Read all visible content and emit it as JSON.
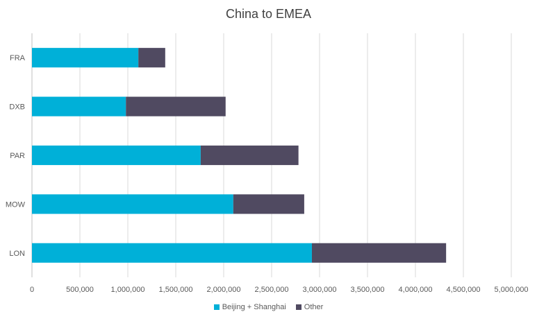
{
  "chart_data": {
    "type": "bar",
    "orientation": "horizontal",
    "stacked": true,
    "title": "China to EMEA",
    "xlabel": "",
    "ylabel": "",
    "categories": [
      "FRA",
      "DXB",
      "PAR",
      "MOW",
      "LON"
    ],
    "series": [
      {
        "name": "Beijing + Shanghai",
        "color": "#00B0D8",
        "values": [
          1110000,
          980000,
          1760000,
          2100000,
          2920000
        ]
      },
      {
        "name": "Other",
        "color": "#504A61",
        "values": [
          280000,
          1040000,
          1020000,
          740000,
          1400000
        ]
      }
    ],
    "xlim": [
      0,
      5000000
    ],
    "xticks": [
      "0",
      "500,000",
      "1,000,000",
      "1,500,000",
      "2,000,000",
      "2,500,000",
      "3,000,000",
      "3,500,000",
      "4,000,000",
      "4,500,000",
      "5,000,000"
    ],
    "grid": true,
    "legend_position": "bottom"
  }
}
